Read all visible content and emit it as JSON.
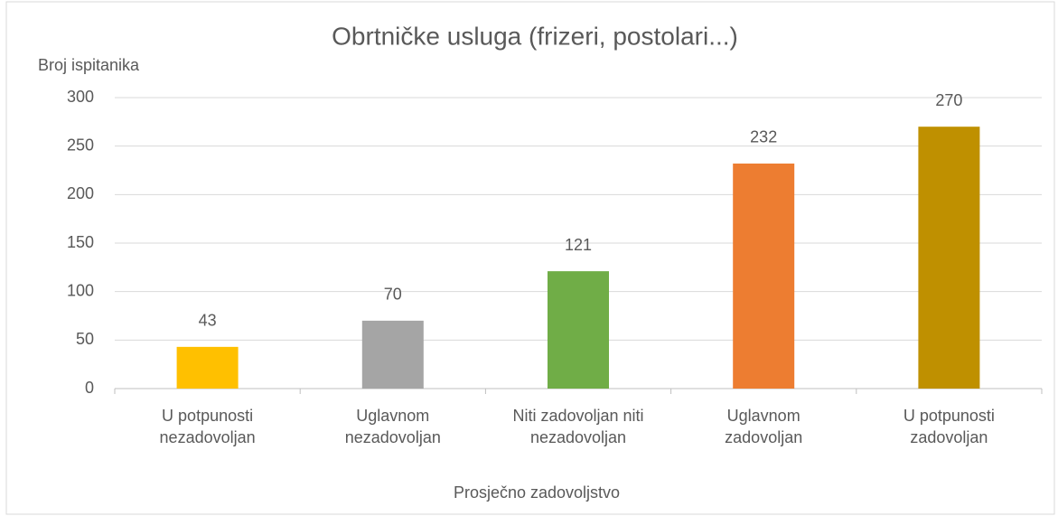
{
  "chart_data": {
    "type": "bar",
    "title": "Obrtničke usluga (frizeri, postolari...)",
    "y_label": "Broj ispitanika",
    "x_label": "Prosječno zadovoljstvo",
    "categories": [
      "U potpunosti nezadovoljan",
      "Uglavnom nezadovoljan",
      "Niti zadovoljan niti nezadovoljan",
      "Uglavnom zadovoljan",
      "U potpunosti zadovoljan"
    ],
    "values": [
      43,
      70,
      121,
      232,
      270
    ],
    "colors": [
      "#FFC000",
      "#A5A5A5",
      "#70AD47",
      "#ED7D31",
      "#BF9000"
    ],
    "ylim": [
      0,
      300
    ],
    "yticks": [
      0,
      50,
      100,
      150,
      200,
      250,
      300
    ],
    "grid": true
  }
}
